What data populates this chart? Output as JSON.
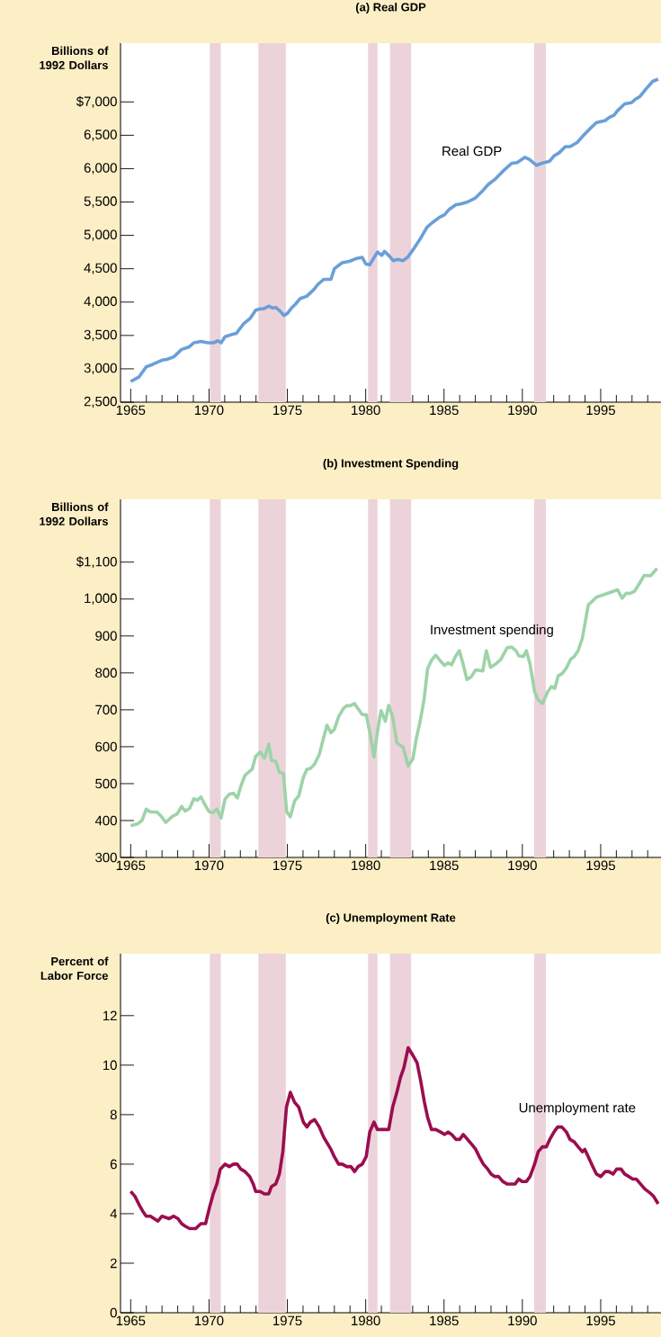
{
  "chart_data": [
    {
      "type": "line",
      "title": "(a) Real GDP",
      "ylabel": "Billions of 1992 Dollars",
      "x": [
        1965.0,
        1965.54,
        1965.99,
        1966.44,
        1967.0,
        1967.3,
        1967.75,
        1968.25,
        1968.74,
        1969.03,
        1969.48,
        1969.94,
        1970.27,
        1970.57,
        1970.77,
        1971.02,
        1971.4,
        1971.74,
        1972.19,
        1972.64,
        1972.98,
        1973.27,
        1973.5,
        1973.81,
        1974.06,
        1974.26,
        1974.51,
        1974.78,
        1975.0,
        1975.3,
        1975.52,
        1975.8,
        1976.25,
        1976.7,
        1976.97,
        1977.31,
        1977.78,
        1978.0,
        1978.5,
        1978.95,
        1979.36,
        1979.78,
        1980.01,
        1980.26,
        1980.75,
        1981.02,
        1981.2,
        1981.47,
        1981.77,
        1982.04,
        1982.38,
        1982.67,
        1983.01,
        1983.46,
        1983.91,
        1984.25,
        1984.7,
        1985.04,
        1985.33,
        1985.76,
        1986.05,
        1986.5,
        1987.0,
        1987.47,
        1987.81,
        1988.3,
        1988.75,
        1989.32,
        1989.66,
        1990.17,
        1990.44,
        1990.9,
        1991.23,
        1991.73,
        1992.02,
        1992.36,
        1992.74,
        1993.04,
        1993.49,
        1993.83,
        1994.28,
        1994.73,
        1995.29,
        1995.56,
        1995.85,
        1996.08,
        1996.53,
        1996.98,
        1997.21,
        1997.5,
        1997.88,
        1998.33,
        1998.67
      ],
      "series": [
        {
          "name": "Real GDP",
          "color": "#6a9fd8",
          "values": [
            2810,
            2880,
            3030,
            3070,
            3130,
            3140,
            3180,
            3290,
            3330,
            3390,
            3410,
            3390,
            3390,
            3420,
            3390,
            3480,
            3510,
            3530,
            3670,
            3760,
            3880,
            3900,
            3900,
            3940,
            3910,
            3920,
            3870,
            3800,
            3830,
            3920,
            3970,
            4050,
            4090,
            4190,
            4270,
            4340,
            4340,
            4500,
            4590,
            4610,
            4650,
            4670,
            4570,
            4560,
            4750,
            4700,
            4760,
            4700,
            4620,
            4640,
            4620,
            4670,
            4780,
            4940,
            5120,
            5190,
            5270,
            5310,
            5390,
            5460,
            5470,
            5500,
            5560,
            5670,
            5760,
            5850,
            5960,
            6080,
            6090,
            6170,
            6140,
            6050,
            6080,
            6110,
            6190,
            6240,
            6330,
            6330,
            6390,
            6480,
            6590,
            6690,
            6720,
            6770,
            6800,
            6870,
            6970,
            6990,
            7040,
            7080,
            7190,
            7310,
            7340
          ]
        }
      ],
      "xlim": [
        1964.35,
        1998.85
      ],
      "ylim": [
        2500,
        7880
      ],
      "xticks": [
        1965,
        {
          "value": 1966,
          "label": null
        },
        {
          "value": 1967,
          "label": null
        },
        {
          "value": 1968,
          "label": null
        },
        {
          "value": 1969,
          "label": null
        },
        1970,
        {
          "value": 1971,
          "label": null
        },
        {
          "value": 1972,
          "label": null
        },
        {
          "value": 1973,
          "label": null
        },
        {
          "value": 1974,
          "label": null
        },
        1975,
        {
          "value": 1976,
          "label": null
        },
        {
          "value": 1977,
          "label": null
        },
        {
          "value": 1978,
          "label": null
        },
        {
          "value": 1979,
          "label": null
        },
        1980,
        {
          "value": 1981,
          "label": null
        },
        {
          "value": 1982,
          "label": null
        },
        {
          "value": 1983,
          "label": null
        },
        {
          "value": 1984,
          "label": null
        },
        1985,
        {
          "value": 1986,
          "label": null
        },
        {
          "value": 1987,
          "label": null
        },
        {
          "value": 1988,
          "label": null
        },
        {
          "value": 1989,
          "label": null
        },
        1990,
        {
          "value": 1991,
          "label": null
        },
        {
          "value": 1992,
          "label": null
        },
        {
          "value": 1993,
          "label": null
        },
        {
          "value": 1994,
          "label": null
        },
        1995,
        {
          "value": 1996,
          "label": null
        },
        {
          "value": 1997,
          "label": null
        },
        {
          "value": 1998,
          "label": null
        }
      ],
      "yticks": [
        {
          "value": 2500,
          "label": "2,500"
        },
        {
          "value": 3000,
          "label": "3,000"
        },
        {
          "value": 3500,
          "label": "3,500"
        },
        {
          "value": 4000,
          "label": "4,000"
        },
        {
          "value": 4500,
          "label": "4,500"
        },
        {
          "value": 5000,
          "label": "5,000"
        },
        {
          "value": 5500,
          "label": "5,500"
        },
        {
          "value": 6000,
          "label": "6,000"
        },
        {
          "value": 6500,
          "label": "6,500"
        },
        {
          "value": 7000,
          "label": "$7,000"
        }
      ],
      "bands": [
        {
          "axis": "x",
          "from": 1970.05,
          "to": 1970.75,
          "color": "#ecd3da"
        },
        {
          "axis": "x",
          "from": 1973.15,
          "to": 1974.9,
          "color": "#ecd3da"
        },
        {
          "axis": "x",
          "from": 1980.15,
          "to": 1980.75,
          "color": "#ecd3da"
        },
        {
          "axis": "x",
          "from": 1981.55,
          "to": 1982.9,
          "color": "#ecd3da"
        },
        {
          "axis": "x",
          "from": 1990.75,
          "to": 1991.5,
          "color": "#ecd3da"
        }
      ]
    },
    {
      "type": "line",
      "title": "(b) Investment Spending",
      "ylabel": "Billions of 1992 Dollars",
      "x": [
        1965.0,
        1965.43,
        1965.72,
        1965.99,
        1966.26,
        1966.67,
        1966.94,
        1967.23,
        1967.68,
        1967.97,
        1968.25,
        1968.47,
        1968.76,
        1969.03,
        1969.25,
        1969.48,
        1969.78,
        1970.0,
        1970.23,
        1970.5,
        1970.77,
        1971.02,
        1971.29,
        1971.56,
        1971.81,
        1972.03,
        1972.3,
        1972.75,
        1972.98,
        1973.27,
        1973.54,
        1973.81,
        1973.99,
        1974.26,
        1974.49,
        1974.74,
        1974.96,
        1975.19,
        1975.46,
        1975.73,
        1976.02,
        1976.25,
        1976.47,
        1976.74,
        1977.04,
        1977.31,
        1977.53,
        1977.78,
        1978.0,
        1978.27,
        1978.57,
        1978.79,
        1979.02,
        1979.29,
        1979.51,
        1979.78,
        1980.03,
        1980.3,
        1980.53,
        1980.75,
        1980.98,
        1981.25,
        1981.47,
        1981.72,
        1981.99,
        1982.4,
        1982.71,
        1983.01,
        1983.23,
        1983.46,
        1983.73,
        1983.95,
        1984.2,
        1984.47,
        1984.77,
        1985.04,
        1985.26,
        1985.49,
        1985.71,
        1985.98,
        1986.23,
        1986.46,
        1986.73,
        1987.02,
        1987.47,
        1987.7,
        1987.97,
        1988.3,
        1988.64,
        1989.02,
        1989.32,
        1989.59,
        1989.77,
        1990.06,
        1990.26,
        1990.49,
        1990.78,
        1991.01,
        1991.28,
        1991.62,
        1991.86,
        1992.07,
        1992.29,
        1992.54,
        1992.81,
        1993.08,
        1993.31,
        1993.56,
        1993.83,
        1994.21,
        1994.73,
        1996.08,
        1996.37,
        1996.64,
        1996.87,
        1997.16,
        1997.32,
        1997.5,
        1997.77,
        1998.18,
        1998.6
      ],
      "series": [
        {
          "name": "Investment spending",
          "color": "#9dd3a8",
          "values": [
            386,
            391,
            400,
            431,
            423,
            423,
            412,
            395,
            412,
            418,
            438,
            426,
            433,
            459,
            455,
            464,
            440,
            424,
            421,
            431,
            407,
            458,
            471,
            474,
            461,
            493,
            523,
            539,
            574,
            586,
            569,
            607,
            563,
            560,
            531,
            528,
            424,
            410,
            453,
            467,
            517,
            539,
            541,
            553,
            579,
            624,
            658,
            638,
            647,
            681,
            703,
            711,
            711,
            717,
            703,
            687,
            687,
            631,
            572,
            641,
            698,
            669,
            712,
            681,
            610,
            598,
            548,
            567,
            622,
            665,
            729,
            811,
            834,
            848,
            832,
            820,
            827,
            822,
            843,
            860,
            822,
            782,
            789,
            808,
            805,
            860,
            815,
            824,
            837,
            868,
            870,
            860,
            846,
            844,
            860,
            824,
            749,
            727,
            717,
            749,
            763,
            758,
            792,
            798,
            813,
            837,
            844,
            860,
            894,
            984,
            1005,
            1025,
            1002,
            1016,
            1015,
            1021,
            1032,
            1044,
            1064,
            1063,
            1083
          ]
        }
      ],
      "xlim": [
        1964.35,
        1998.85
      ],
      "ylim": [
        300,
        1270
      ],
      "xticks": [
        1965,
        {
          "value": 1966,
          "label": null
        },
        {
          "value": 1967,
          "label": null
        },
        {
          "value": 1968,
          "label": null
        },
        {
          "value": 1969,
          "label": null
        },
        1970,
        {
          "value": 1971,
          "label": null
        },
        {
          "value": 1972,
          "label": null
        },
        {
          "value": 1973,
          "label": null
        },
        {
          "value": 1974,
          "label": null
        },
        1975,
        {
          "value": 1976,
          "label": null
        },
        {
          "value": 1977,
          "label": null
        },
        {
          "value": 1978,
          "label": null
        },
        {
          "value": 1979,
          "label": null
        },
        1980,
        {
          "value": 1981,
          "label": null
        },
        {
          "value": 1982,
          "label": null
        },
        {
          "value": 1983,
          "label": null
        },
        {
          "value": 1984,
          "label": null
        },
        1985,
        {
          "value": 1986,
          "label": null
        },
        {
          "value": 1987,
          "label": null
        },
        {
          "value": 1988,
          "label": null
        },
        {
          "value": 1989,
          "label": null
        },
        1990,
        {
          "value": 1991,
          "label": null
        },
        {
          "value": 1992,
          "label": null
        },
        {
          "value": 1993,
          "label": null
        },
        {
          "value": 1994,
          "label": null
        },
        1995,
        {
          "value": 1996,
          "label": null
        },
        {
          "value": 1997,
          "label": null
        },
        {
          "value": 1998,
          "label": null
        }
      ],
      "yticks": [
        300,
        400,
        500,
        600,
        700,
        800,
        900,
        {
          "value": 1000,
          "label": "1,000"
        },
        {
          "value": 1100,
          "label": "$1,100"
        }
      ],
      "bands": [
        {
          "axis": "x",
          "from": 1970.05,
          "to": 1970.75,
          "color": "#ecd3da"
        },
        {
          "axis": "x",
          "from": 1973.15,
          "to": 1974.9,
          "color": "#ecd3da"
        },
        {
          "axis": "x",
          "from": 1980.15,
          "to": 1980.75,
          "color": "#ecd3da"
        },
        {
          "axis": "x",
          "from": 1981.55,
          "to": 1982.9,
          "color": "#ecd3da"
        },
        {
          "axis": "x",
          "from": 1990.75,
          "to": 1991.5,
          "color": "#ecd3da"
        }
      ]
    },
    {
      "type": "line",
      "title": "(c) Unemployment Rate",
      "ylabel": "Percent of Labor Force",
      "x": [
        1965.0,
        1965.27,
        1965.59,
        1965.77,
        1965.99,
        1966.26,
        1966.74,
        1967.0,
        1967.46,
        1967.75,
        1968.02,
        1968.25,
        1968.47,
        1968.76,
        1969.15,
        1969.48,
        1969.78,
        1970.05,
        1970.27,
        1970.5,
        1970.72,
        1971.02,
        1971.29,
        1971.56,
        1971.81,
        1972.03,
        1972.3,
        1972.6,
        1972.82,
        1972.98,
        1973.27,
        1973.54,
        1973.81,
        1973.99,
        1974.26,
        1974.49,
        1974.71,
        1974.94,
        1975.19,
        1975.46,
        1975.73,
        1976.02,
        1976.25,
        1976.47,
        1976.74,
        1977.04,
        1977.31,
        1977.78,
        1978.0,
        1978.27,
        1978.5,
        1978.79,
        1979.06,
        1979.29,
        1979.51,
        1979.78,
        1980.03,
        1980.26,
        1980.53,
        1980.75,
        1980.98,
        1981.25,
        1981.47,
        1981.72,
        1981.99,
        1982.22,
        1982.44,
        1982.71,
        1983.01,
        1983.28,
        1983.5,
        1983.75,
        1983.95,
        1984.2,
        1984.47,
        1984.77,
        1985.04,
        1985.26,
        1985.49,
        1985.76,
        1986.0,
        1986.23,
        1986.5,
        1986.77,
        1987.02,
        1987.25,
        1987.51,
        1987.79,
        1988.01,
        1988.24,
        1988.48,
        1988.75,
        1989.02,
        1989.27,
        1989.54,
        1989.77,
        1989.99,
        1990.26,
        1990.49,
        1990.78,
        1991.01,
        1991.28,
        1991.53,
        1991.75,
        1992.02,
        1992.25,
        1992.52,
        1992.81,
        1993.04,
        1993.31,
        1993.56,
        1993.83,
        1993.99,
        1994.28,
        1994.5,
        1994.73,
        1995.0,
        1995.29,
        1995.52,
        1995.79,
        1996.01,
        1996.3,
        1996.53,
        1996.8,
        1997.05,
        1997.27,
        1997.54,
        1997.81,
        1998.22,
        1998.38,
        1998.67
      ],
      "series": [
        {
          "name": "Unemployment rate",
          "color": "#9b0d4f",
          "values": [
            4.9,
            4.7,
            4.3,
            4.1,
            3.9,
            3.9,
            3.7,
            3.9,
            3.8,
            3.9,
            3.8,
            3.6,
            3.5,
            3.4,
            3.4,
            3.6,
            3.6,
            4.3,
            4.8,
            5.2,
            5.8,
            6.0,
            5.9,
            6.0,
            6.0,
            5.8,
            5.7,
            5.5,
            5.2,
            4.9,
            4.9,
            4.8,
            4.8,
            5.1,
            5.2,
            5.6,
            6.5,
            8.3,
            8.9,
            8.5,
            8.3,
            7.7,
            7.5,
            7.7,
            7.8,
            7.5,
            7.1,
            6.6,
            6.3,
            6.0,
            6.0,
            5.9,
            5.9,
            5.7,
            5.9,
            6.0,
            6.3,
            7.3,
            7.7,
            7.4,
            7.4,
            7.4,
            7.4,
            8.3,
            8.9,
            9.5,
            9.9,
            10.7,
            10.4,
            10.1,
            9.4,
            8.5,
            7.9,
            7.4,
            7.4,
            7.3,
            7.2,
            7.3,
            7.2,
            7.0,
            7.0,
            7.2,
            7.0,
            6.8,
            6.6,
            6.3,
            6.0,
            5.8,
            5.6,
            5.5,
            5.5,
            5.3,
            5.2,
            5.2,
            5.2,
            5.4,
            5.3,
            5.3,
            5.5,
            6.0,
            6.5,
            6.7,
            6.7,
            7.0,
            7.3,
            7.5,
            7.5,
            7.3,
            7.0,
            6.9,
            6.7,
            6.5,
            6.6,
            6.2,
            5.9,
            5.6,
            5.5,
            5.7,
            5.7,
            5.6,
            5.8,
            5.8,
            5.6,
            5.5,
            5.4,
            5.4,
            5.2,
            5.0,
            4.8,
            4.7,
            4.4
          ]
        }
      ],
      "xlim": [
        1964.35,
        1998.85
      ],
      "ylim": [
        0,
        14.5
      ],
      "xticks": [
        1965,
        {
          "value": 1966,
          "label": null
        },
        {
          "value": 1967,
          "label": null
        },
        {
          "value": 1968,
          "label": null
        },
        {
          "value": 1969,
          "label": null
        },
        1970,
        {
          "value": 1971,
          "label": null
        },
        {
          "value": 1972,
          "label": null
        },
        {
          "value": 1973,
          "label": null
        },
        {
          "value": 1974,
          "label": null
        },
        1975,
        {
          "value": 1976,
          "label": null
        },
        {
          "value": 1977,
          "label": null
        },
        {
          "value": 1978,
          "label": null
        },
        {
          "value": 1979,
          "label": null
        },
        1980,
        {
          "value": 1981,
          "label": null
        },
        {
          "value": 1982,
          "label": null
        },
        {
          "value": 1983,
          "label": null
        },
        {
          "value": 1984,
          "label": null
        },
        1985,
        {
          "value": 1986,
          "label": null
        },
        {
          "value": 1987,
          "label": null
        },
        {
          "value": 1988,
          "label": null
        },
        {
          "value": 1989,
          "label": null
        },
        1990,
        {
          "value": 1991,
          "label": null
        },
        {
          "value": 1992,
          "label": null
        },
        {
          "value": 1993,
          "label": null
        },
        {
          "value": 1994,
          "label": null
        },
        1995,
        {
          "value": 1996,
          "label": null
        },
        {
          "value": 1997,
          "label": null
        },
        {
          "value": 1998,
          "label": null
        }
      ],
      "yticks": [
        0,
        2,
        4,
        6,
        8,
        10,
        12
      ],
      "bands": [
        {
          "axis": "x",
          "from": 1970.05,
          "to": 1970.75,
          "color": "#ecd3da"
        },
        {
          "axis": "x",
          "from": 1973.15,
          "to": 1974.9,
          "color": "#ecd3da"
        },
        {
          "axis": "x",
          "from": 1980.15,
          "to": 1980.75,
          "color": "#ecd3da"
        },
        {
          "axis": "x",
          "from": 1981.55,
          "to": 1982.9,
          "color": "#ecd3da"
        },
        {
          "axis": "x",
          "from": 1990.75,
          "to": 1991.5,
          "color": "#ecd3da"
        }
      ]
    }
  ]
}
